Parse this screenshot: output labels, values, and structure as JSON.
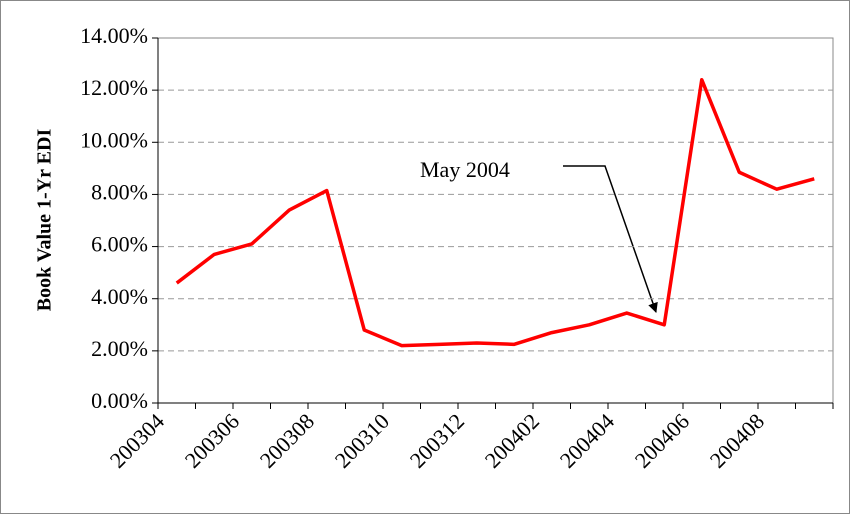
{
  "chart_data": {
    "type": "line",
    "ylabel": "Book Value 1-Yr EDI",
    "categories": [
      "200304",
      null,
      "200306",
      null,
      "200308",
      null,
      "200310",
      null,
      "200312",
      null,
      "200402",
      null,
      "200404",
      null,
      "200406",
      null,
      "200408",
      null
    ],
    "series": [
      {
        "name": "Book Value 1-Yr EDI",
        "color": "#ff0000",
        "values": [
          4.6,
          5.7,
          6.1,
          7.4,
          8.15,
          2.8,
          2.2,
          2.25,
          2.3,
          2.25,
          2.7,
          3.0,
          3.45,
          3.0,
          12.4,
          8.85,
          8.2,
          8.6
        ]
      }
    ],
    "ylim": [
      0,
      14
    ],
    "yticks": [
      {
        "value": 0,
        "label": "0.00%"
      },
      {
        "value": 2,
        "label": "2.00%"
      },
      {
        "value": 4,
        "label": "4.00%"
      },
      {
        "value": 6,
        "label": "6.00%"
      },
      {
        "value": 8,
        "label": "8.00%"
      },
      {
        "value": 10,
        "label": "10.00%"
      },
      {
        "value": 12,
        "label": "12.00%"
      },
      {
        "value": 14,
        "label": "14.00%"
      }
    ],
    "grid": true,
    "annotation": "May 2004"
  }
}
